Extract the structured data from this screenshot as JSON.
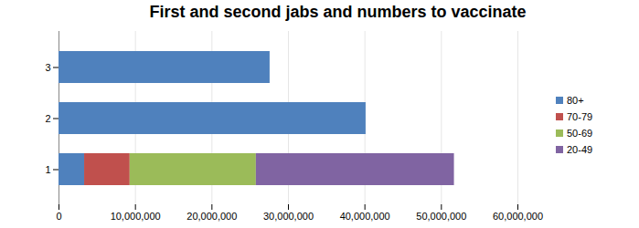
{
  "chart_data": {
    "type": "bar",
    "orientation": "horizontal",
    "stacked": true,
    "title": "First and second jabs and numbers to vaccinate",
    "categories": [
      "1",
      "2",
      "3"
    ],
    "series": [
      {
        "name": "80+",
        "color": "#4f81bd",
        "values": [
          3350000,
          40150000,
          27600000
        ]
      },
      {
        "name": "70-79",
        "color": "#c0504d",
        "values": [
          5950000,
          0,
          0
        ]
      },
      {
        "name": "50-69",
        "color": "#9bbb59",
        "values": [
          16500000,
          0,
          0
        ]
      },
      {
        "name": "20-49",
        "color": "#8064a2",
        "values": [
          25900000,
          0,
          0
        ]
      }
    ],
    "xlim": [
      0,
      60000000
    ],
    "xticks": [
      0,
      {
        "value": 10000000,
        "label": "10,000,000"
      },
      {
        "value": 20000000,
        "label": "20,000,000"
      },
      {
        "value": 30000000,
        "label": "30,000,000"
      },
      {
        "value": 40000000,
        "label": "40,000,000"
      },
      {
        "value": 50000000,
        "label": "50,000,000"
      },
      {
        "value": 60000000,
        "label": "60,000,000"
      }
    ],
    "grid": true,
    "legend": "right"
  }
}
